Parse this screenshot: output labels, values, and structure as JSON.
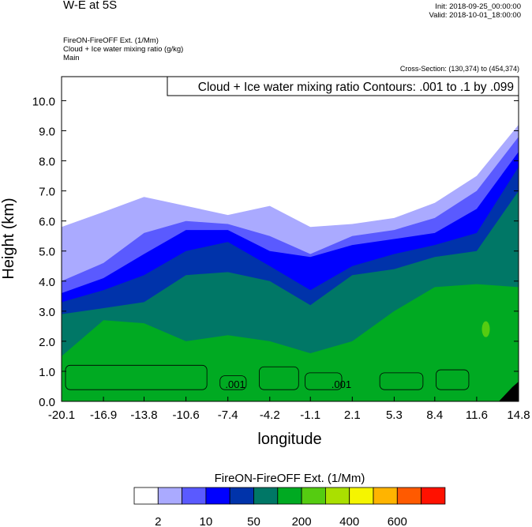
{
  "header": {
    "title": "W-E at 5S",
    "init": "Init: 2018-09-25_00:00:00",
    "valid": "Valid: 2018-10-01_18:00:00",
    "subtitles": [
      "FireON-FireOFF Ext.   (1/Mm)",
      "Cloud + Ice water mixing ratio   (g/kg)",
      "Main"
    ],
    "cross_section": "Cross-Section: (130,374) to (454,374)"
  },
  "chart_data": {
    "type": "heatmap",
    "title": "Cloud + Ice water mixing ratio Contours: .001 to .1 by .099",
    "xlabel": "longitude",
    "ylabel": "Height (km)",
    "xlim": [
      -20.1,
      14.8
    ],
    "ylim": [
      0,
      10.8
    ],
    "xticks": [
      "-20.1",
      "-16.9",
      "-13.8",
      "-10.6",
      "-7.4",
      "-4.2",
      "-1.1",
      "2.1",
      "5.3",
      "8.4",
      "11.6",
      "14.8"
    ],
    "yticks": [
      "0.0",
      "1.0",
      "2.0",
      "3.0",
      "4.0",
      "5.0",
      "6.0",
      "7.0",
      "8.0",
      "9.0",
      "10.0"
    ],
    "contour_labels": [
      ".001",
      ".001"
    ],
    "colorbar": {
      "title": "FireON-FireOFF Ext.  (1/Mm)",
      "colors": [
        "#ffffff",
        "#aaaaff",
        "#5a5aff",
        "#0000ff",
        "#0033aa",
        "#007766",
        "#00aa22",
        "#55cc11",
        "#aae000",
        "#f5f500",
        "#ffb400",
        "#ff5a00",
        "#ff1100"
      ],
      "labels": [
        "2",
        "10",
        "50",
        "200",
        "400",
        "600"
      ]
    },
    "layers_top_km": {
      "x": [
        -20.1,
        -16.9,
        -13.8,
        -10.6,
        -7.4,
        -4.2,
        -1.1,
        2.1,
        5.3,
        8.4,
        11.6,
        14.8
      ],
      "light_blue": [
        5.8,
        6.3,
        6.8,
        6.5,
        6.2,
        6.5,
        5.8,
        5.9,
        6.1,
        6.6,
        7.5,
        9.2
      ],
      "mid_blue": [
        4.0,
        4.6,
        5.6,
        6.0,
        5.9,
        5.5,
        4.9,
        5.5,
        5.7,
        6.1,
        7.0,
        8.8
      ],
      "blue": [
        3.6,
        4.1,
        4.9,
        5.7,
        5.7,
        5.0,
        4.8,
        5.2,
        5.4,
        5.6,
        6.4,
        8.3
      ],
      "dark_blue": [
        3.3,
        3.7,
        4.2,
        5.0,
        5.3,
        4.5,
        3.7,
        4.5,
        4.9,
        5.2,
        5.6,
        7.8
      ],
      "teal": [
        2.9,
        3.1,
        3.3,
        4.2,
        4.3,
        4.0,
        3.2,
        4.2,
        4.4,
        4.8,
        5.0,
        7.0
      ],
      "green": [
        1.5,
        2.7,
        2.6,
        2.0,
        2.2,
        2.0,
        1.6,
        2.0,
        3.0,
        3.8,
        3.9,
        3.8
      ]
    }
  }
}
